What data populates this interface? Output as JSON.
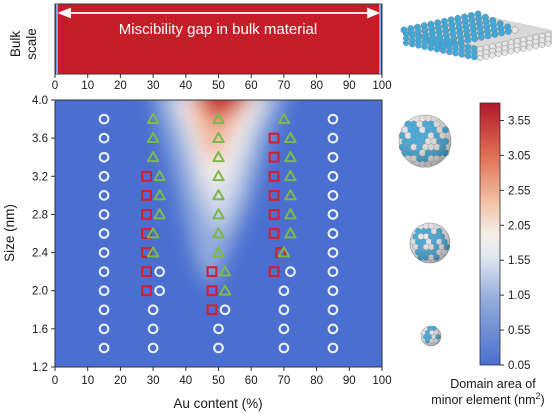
{
  "bulk_panel": {
    "ylabel_lines": [
      "Bulk",
      "scale"
    ],
    "banner": "Miscibility gap in bulk material",
    "xticks": [
      0,
      10,
      20,
      30,
      40,
      50,
      60,
      70,
      80,
      90,
      100
    ]
  },
  "colorbar": {
    "ticks": [
      "3.55",
      "3.05",
      "2.55",
      "2.05",
      "1.55",
      "1.05",
      "0.55",
      "0.05"
    ],
    "range": [
      0.05,
      3.8
    ],
    "label_line1": "Domain area of",
    "label_line2_text": "minor element (nm",
    "label_line2_sup": "2",
    "label_line2_end": ")"
  },
  "colors": {
    "low": "#4a6fd0",
    "mid": "#f2f0ec",
    "high": "#b2182b",
    "circle": "#e9eff5",
    "square": "#d32030",
    "triangle": "#7fb84a",
    "bulk_bar": "#c51e29",
    "sphere_blue": "#3fa9dc",
    "sphere_white": "#e6e6e6"
  },
  "chart_data": {
    "type": "heatmap",
    "xlabel": "Au content (%)",
    "ylabel": "Size (nm)",
    "xlim": [
      0,
      100
    ],
    "ylim": [
      1.2,
      4.0
    ],
    "xticks": [
      0,
      10,
      20,
      30,
      40,
      50,
      60,
      70,
      80,
      90,
      100
    ],
    "yticks": [
      "1.2",
      "1.6",
      "2.0",
      "2.4",
      "2.8",
      "3.2",
      "3.6",
      "4.0"
    ],
    "series": [
      {
        "marker": "circle",
        "points": [
          [
            15,
            1.4
          ],
          [
            15,
            1.6
          ],
          [
            15,
            1.8
          ],
          [
            15,
            2.0
          ],
          [
            15,
            2.2
          ],
          [
            15,
            2.4
          ],
          [
            15,
            2.6
          ],
          [
            15,
            2.8
          ],
          [
            15,
            3.0
          ],
          [
            15,
            3.2
          ],
          [
            15,
            3.4
          ],
          [
            15,
            3.6
          ],
          [
            15,
            3.8
          ],
          [
            30,
            1.4
          ],
          [
            30,
            1.6
          ],
          [
            30,
            1.8
          ],
          [
            32,
            2.0
          ],
          [
            32,
            2.2
          ],
          [
            50,
            1.4
          ],
          [
            50,
            1.6
          ],
          [
            52,
            1.8
          ],
          [
            70,
            1.4
          ],
          [
            70,
            1.6
          ],
          [
            70,
            1.8
          ],
          [
            70,
            2.0
          ],
          [
            72,
            2.2
          ],
          [
            85,
            1.4
          ],
          [
            85,
            1.6
          ],
          [
            85,
            1.8
          ],
          [
            85,
            2.0
          ],
          [
            85,
            2.2
          ],
          [
            85,
            2.4
          ],
          [
            85,
            2.6
          ],
          [
            85,
            2.8
          ],
          [
            85,
            3.0
          ],
          [
            85,
            3.2
          ],
          [
            85,
            3.4
          ],
          [
            85,
            3.6
          ],
          [
            85,
            3.8
          ]
        ]
      },
      {
        "marker": "square",
        "points": [
          [
            28,
            2.0
          ],
          [
            28,
            2.2
          ],
          [
            28,
            2.4
          ],
          [
            28,
            2.6
          ],
          [
            28,
            2.8
          ],
          [
            28,
            3.0
          ],
          [
            28,
            3.2
          ],
          [
            48,
            1.8
          ],
          [
            48,
            2.0
          ],
          [
            48,
            2.2
          ],
          [
            67,
            2.2
          ],
          [
            69,
            2.4
          ],
          [
            67,
            2.6
          ],
          [
            67,
            2.8
          ],
          [
            67,
            3.0
          ],
          [
            67,
            3.2
          ],
          [
            67,
            3.4
          ],
          [
            67,
            3.6
          ]
        ]
      },
      {
        "marker": "triangle",
        "points": [
          [
            30,
            3.8
          ],
          [
            30,
            3.6
          ],
          [
            30,
            3.4
          ],
          [
            32,
            3.2
          ],
          [
            32,
            3.0
          ],
          [
            32,
            2.8
          ],
          [
            30,
            2.6
          ],
          [
            30,
            2.4
          ],
          [
            50,
            3.8
          ],
          [
            50,
            3.6
          ],
          [
            50,
            3.4
          ],
          [
            50,
            3.2
          ],
          [
            50,
            3.0
          ],
          [
            50,
            2.8
          ],
          [
            50,
            2.6
          ],
          [
            50,
            2.4
          ],
          [
            52,
            2.2
          ],
          [
            52,
            2.0
          ],
          [
            70,
            3.8
          ],
          [
            72,
            3.6
          ],
          [
            72,
            3.4
          ],
          [
            72,
            3.2
          ],
          [
            72,
            3.0
          ],
          [
            72,
            2.8
          ],
          [
            72,
            2.6
          ],
          [
            70,
            2.4
          ]
        ]
      }
    ]
  }
}
